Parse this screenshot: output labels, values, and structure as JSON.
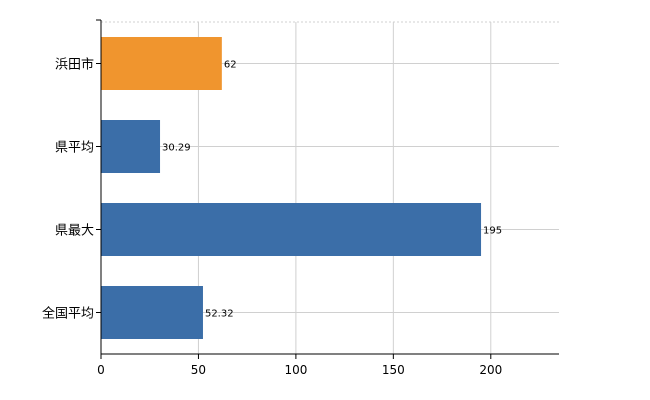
{
  "chart_data": {
    "type": "bar",
    "orientation": "horizontal",
    "categories": [
      "浜田市",
      "県平均",
      "県最大",
      "全国平均"
    ],
    "values": [
      62,
      30.29,
      195,
      52.32
    ],
    "value_labels": [
      "62",
      "30.29",
      "195",
      "52.32"
    ],
    "bar_colors": [
      "#f0952e",
      "#3b6ea8",
      "#3b6ea8",
      "#3b6ea8"
    ],
    "xlim": [
      0,
      235
    ],
    "xticks": [
      0,
      50,
      100,
      150,
      200
    ],
    "xtick_labels": [
      "0",
      "50",
      "100",
      "150",
      "200"
    ],
    "grid": true,
    "grid_color": "#d0d0d0",
    "title": "",
    "xlabel": "",
    "ylabel": ""
  }
}
